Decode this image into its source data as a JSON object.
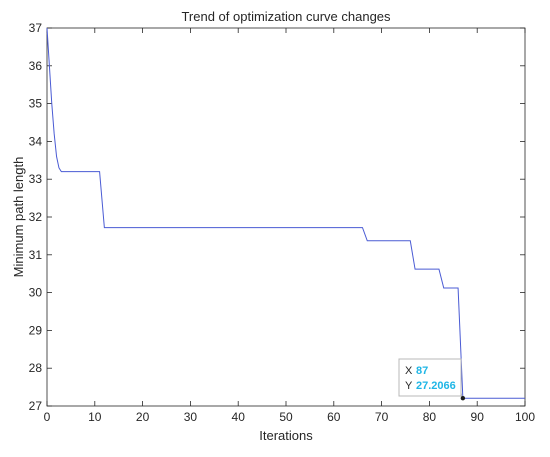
{
  "chart_data": {
    "type": "line",
    "title": "Trend of optimization curve changes",
    "xlabel": "Iterations",
    "ylabel": "Minimum path length",
    "xlim": [
      0,
      100
    ],
    "ylim": [
      27,
      37
    ],
    "xticks": [
      0,
      10,
      20,
      30,
      40,
      50,
      60,
      70,
      80,
      90,
      100
    ],
    "yticks": [
      27,
      28,
      29,
      30,
      31,
      32,
      33,
      34,
      35,
      36,
      37
    ],
    "grid": false,
    "series": [
      {
        "color": "#4a5bd4",
        "x": [
          0,
          0.5,
          1,
          1.5,
          2,
          2.5,
          3,
          11,
          12,
          66,
          67,
          76,
          77,
          82,
          83,
          86,
          87,
          100
        ],
        "y": [
          37,
          36.0,
          35.0,
          34.2,
          33.6,
          33.3,
          33.2,
          33.2,
          31.72,
          31.72,
          31.37,
          31.37,
          30.62,
          30.62,
          30.12,
          30.12,
          27.2066,
          27.2066
        ]
      }
    ],
    "datatip": {
      "x_key": "X",
      "x_value": "87",
      "y_key": "Y",
      "y_value": "27.2066",
      "point": [
        87,
        27.2066
      ],
      "value_color": "#1fb6e6"
    }
  }
}
